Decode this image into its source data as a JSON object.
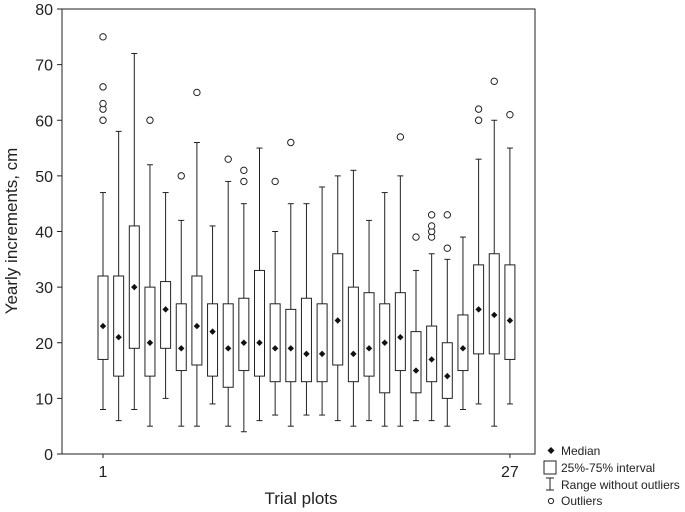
{
  "chart_data": {
    "type": "boxplot",
    "title": "",
    "xlabel": "Trial plots",
    "ylabel": "Yearly increments, cm",
    "ylim": [
      0,
      80
    ],
    "yticks": [
      0,
      10,
      20,
      30,
      40,
      50,
      60,
      70,
      80
    ],
    "x_tick_labels": [
      {
        "plot": 1,
        "label": "1"
      },
      {
        "plot": 27,
        "label": "27"
      }
    ],
    "grid": false,
    "legend_position": "right-bottom",
    "legend": {
      "median": "Median",
      "box": "25%-75% interval",
      "whisker": "Range without outliers",
      "outlier": "Outliers"
    },
    "boxes": [
      {
        "plot": 1,
        "whisker_low": 8,
        "q1": 17,
        "median": 23,
        "q3": 32,
        "whisker_high": 47,
        "outliers": [
          60,
          62,
          63,
          66,
          75
        ]
      },
      {
        "plot": 2,
        "whisker_low": 6,
        "q1": 14,
        "median": 21,
        "q3": 32,
        "whisker_high": 58,
        "outliers": []
      },
      {
        "plot": 3,
        "whisker_low": 8,
        "q1": 19,
        "median": 30,
        "q3": 41,
        "whisker_high": 72,
        "outliers": []
      },
      {
        "plot": 4,
        "whisker_low": 5,
        "q1": 14,
        "median": 20,
        "q3": 30,
        "whisker_high": 52,
        "outliers": [
          60
        ]
      },
      {
        "plot": 5,
        "whisker_low": 10,
        "q1": 19,
        "median": 26,
        "q3": 31,
        "whisker_high": 47,
        "outliers": []
      },
      {
        "plot": 6,
        "whisker_low": 5,
        "q1": 15,
        "median": 19,
        "q3": 27,
        "whisker_high": 42,
        "outliers": [
          50
        ]
      },
      {
        "plot": 7,
        "whisker_low": 5,
        "q1": 16,
        "median": 23,
        "q3": 32,
        "whisker_high": 56,
        "outliers": [
          65
        ]
      },
      {
        "plot": 8,
        "whisker_low": 9,
        "q1": 14,
        "median": 22,
        "q3": 27,
        "whisker_high": 41,
        "outliers": []
      },
      {
        "plot": 9,
        "whisker_low": 5,
        "q1": 12,
        "median": 19,
        "q3": 27,
        "whisker_high": 49,
        "outliers": [
          53
        ]
      },
      {
        "plot": 10,
        "whisker_low": 4,
        "q1": 15,
        "median": 20,
        "q3": 28,
        "whisker_high": 45,
        "outliers": [
          49,
          51
        ]
      },
      {
        "plot": 11,
        "whisker_low": 6,
        "q1": 14,
        "median": 20,
        "q3": 33,
        "whisker_high": 55,
        "outliers": []
      },
      {
        "plot": 12,
        "whisker_low": 7,
        "q1": 13,
        "median": 19,
        "q3": 27,
        "whisker_high": 40,
        "outliers": [
          49
        ]
      },
      {
        "plot": 13,
        "whisker_low": 5,
        "q1": 13,
        "median": 19,
        "q3": 26,
        "whisker_high": 45,
        "outliers": [
          56
        ]
      },
      {
        "plot": 14,
        "whisker_low": 7,
        "q1": 13,
        "median": 18,
        "q3": 28,
        "whisker_high": 45,
        "outliers": []
      },
      {
        "plot": 15,
        "whisker_low": 7,
        "q1": 13,
        "median": 18,
        "q3": 27,
        "whisker_high": 48,
        "outliers": []
      },
      {
        "plot": 16,
        "whisker_low": 6,
        "q1": 16,
        "median": 24,
        "q3": 36,
        "whisker_high": 50,
        "outliers": []
      },
      {
        "plot": 17,
        "whisker_low": 5,
        "q1": 13,
        "median": 18,
        "q3": 30,
        "whisker_high": 51,
        "outliers": []
      },
      {
        "plot": 18,
        "whisker_low": 6,
        "q1": 14,
        "median": 19,
        "q3": 29,
        "whisker_high": 42,
        "outliers": []
      },
      {
        "plot": 19,
        "whisker_low": 5,
        "q1": 11,
        "median": 20,
        "q3": 27,
        "whisker_high": 47,
        "outliers": []
      },
      {
        "plot": 20,
        "whisker_low": 5,
        "q1": 15,
        "median": 21,
        "q3": 29,
        "whisker_high": 50,
        "outliers": [
          57
        ]
      },
      {
        "plot": 21,
        "whisker_low": 6,
        "q1": 11,
        "median": 15,
        "q3": 22,
        "whisker_high": 33,
        "outliers": [
          39
        ]
      },
      {
        "plot": 22,
        "whisker_low": 6,
        "q1": 13,
        "median": 17,
        "q3": 23,
        "whisker_high": 36,
        "outliers": [
          39,
          40,
          41,
          43
        ]
      },
      {
        "plot": 23,
        "whisker_low": 5,
        "q1": 10,
        "median": 14,
        "q3": 20,
        "whisker_high": 35,
        "outliers": [
          37,
          43
        ]
      },
      {
        "plot": 24,
        "whisker_low": 8,
        "q1": 15,
        "median": 19,
        "q3": 25,
        "whisker_high": 39,
        "outliers": []
      },
      {
        "plot": 25,
        "whisker_low": 9,
        "q1": 18,
        "median": 26,
        "q3": 34,
        "whisker_high": 53,
        "outliers": [
          60,
          62
        ]
      },
      {
        "plot": 26,
        "whisker_low": 5,
        "q1": 18,
        "median": 25,
        "q3": 36,
        "whisker_high": 60,
        "outliers": [
          67
        ]
      },
      {
        "plot": 27,
        "whisker_low": 9,
        "q1": 17,
        "median": 24,
        "q3": 34,
        "whisker_high": 55,
        "outliers": [
          61
        ]
      }
    ]
  }
}
